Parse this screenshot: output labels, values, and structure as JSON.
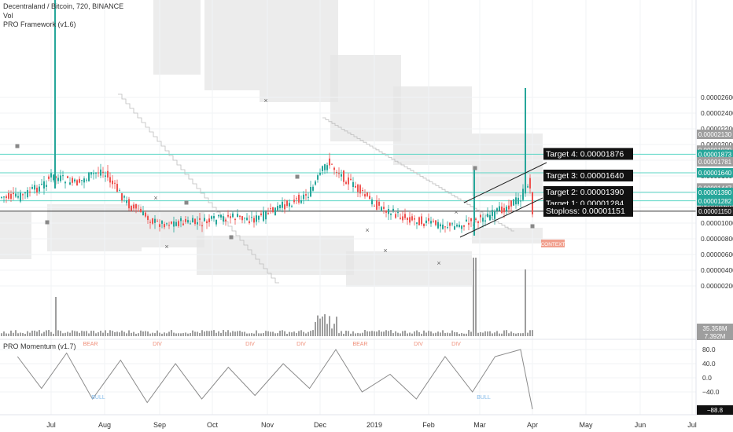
{
  "legend": {
    "title": "Decentraland / Bitcoin, 720, BINANCE",
    "vol": "Vol",
    "framework": "PRO Framework (v1.6)",
    "momentum": "PRO Momentum (v1.7)"
  },
  "colors": {
    "up": "#26a69a",
    "down": "#ef5350",
    "line": "#5bd6c6",
    "stop": "#333333",
    "vol": "#9e9e9e",
    "cloud": "#e6e6e6",
    "context": "#ef8f7a"
  },
  "chart_data": [
    {
      "type": "line",
      "title": "Decentraland / Bitcoin, 720, BINANCE",
      "x_ticks": [
        "Jul",
        "Aug",
        "Sep",
        "Oct",
        "Nov",
        "Dec",
        "2019",
        "Feb",
        "Mar",
        "Apr",
        "May",
        "Jun",
        "Jul"
      ],
      "y_ticks": [
        "0.00002600",
        "0.00002400",
        "0.00002200",
        "0.00002000",
        "0.00001800",
        "0.00001600",
        "0.00001400",
        "0.00001200",
        "0.00001000",
        "0.00000800",
        "0.00000600",
        "0.00000400",
        "0.00000200"
      ],
      "ylim": [
        2e-07,
        2.9e-06
      ],
      "series": [
        {
          "x": [
            "Jun 10",
            "Jun 25",
            "Jul 1",
            "Jul 15",
            "Jul 30",
            "Aug 15",
            "Aug 30",
            "Sep 15",
            "Sep 25",
            "Oct 10",
            "Oct 25",
            "Nov 10",
            "Nov 25",
            "Dec 5",
            "Dec 15",
            "Jan 1",
            "Jan 15",
            "Feb 1",
            "Feb 15",
            "Feb 25",
            "Mar 10",
            "Mar 20",
            "Mar 25",
            "Mar 30",
            "Apr 1"
          ],
          "values": [
            1.33e-05,
            1.47e-05,
            1.6e-05,
            1.5e-05,
            1.68e-05,
            1.22e-05,
            1e-05,
            1.01e-05,
            1e-05,
            1.08e-05,
            1.05e-05,
            1.22e-05,
            1.38e-05,
            1.78e-05,
            1.57e-05,
            1.24e-05,
            1.09e-05,
            1e-05,
            9.6e-06,
            1.02e-05,
            1.12e-05,
            1.26e-05,
            1.32e-05,
            1.55e-05,
            1.16e-05
          ]
        }
      ],
      "price_labels": [
        "0.00002130",
        "0.00001929",
        "0.00001873",
        "0.00001781",
        "0.00001640",
        "0.00001447",
        "0.00001390",
        "0.00001282",
        "0.00001150"
      ],
      "targets": [
        {
          "label": "Target 4: 0.00001876",
          "value": 1.876e-05
        },
        {
          "label": "Target 3: 0.00001640",
          "value": 1.64e-05
        },
        {
          "label": "Target 2: 0.00001390",
          "value": 1.39e-05
        },
        {
          "label": "Target 1: 0.00001284",
          "value": 1.284e-05
        },
        {
          "label": "Stoploss: 0.00001151",
          "value": 1.151e-05
        }
      ],
      "annotation": "CONTEXT"
    },
    {
      "type": "bar",
      "title": "Vol",
      "price_labels": [
        "35.358M",
        "7.392M"
      ]
    },
    {
      "type": "line",
      "title": "PRO Momentum (v1.7)",
      "y_ticks": [
        "80.0",
        "40.0",
        "0.0",
        "−40.0"
      ],
      "ylim": [
        -100,
        100
      ],
      "price_labels": [
        "−88.8"
      ],
      "x": [
        "Jun 10",
        "Jun 25",
        "Jul 10",
        "Jul 25",
        "Aug 10",
        "Aug 25",
        "Sep 10",
        "Sep 25",
        "Oct 10",
        "Oct 25",
        "Nov 10",
        "Nov 25",
        "Dec 10",
        "Dec 25",
        "Jan 10",
        "Jan 25",
        "Feb 10",
        "Feb 25",
        "Mar 10",
        "Mar 25",
        "Apr 1"
      ],
      "values": [
        60,
        -30,
        70,
        -60,
        50,
        -70,
        40,
        -60,
        30,
        -50,
        40,
        -30,
        80,
        -40,
        10,
        -60,
        60,
        -40,
        60,
        80,
        -88.8
      ],
      "labels": [
        "BEAR",
        "DIV",
        "DIV",
        "BEAR",
        "DIV",
        "DIV",
        "BULL",
        "DIV",
        "BULL"
      ]
    }
  ]
}
